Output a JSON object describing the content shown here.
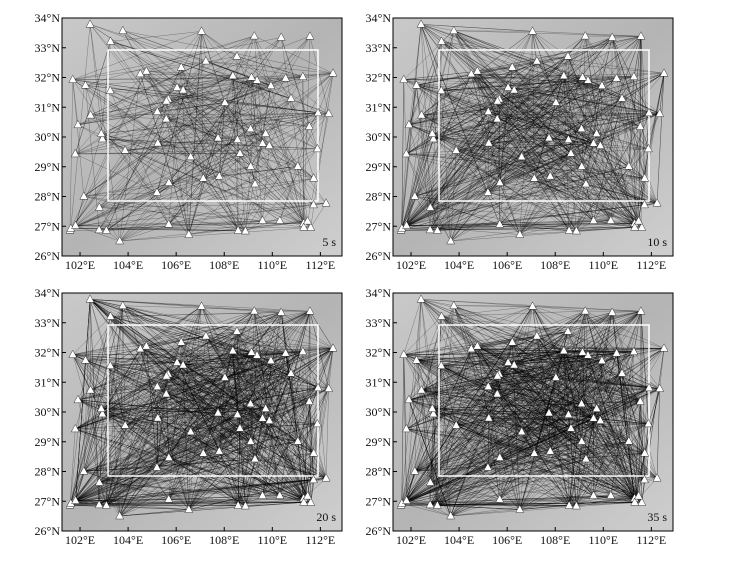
{
  "panels": [
    {
      "period_label": "5 s",
      "xlim": [
        101.25,
        112.9
      ],
      "ylim": [
        26,
        34
      ],
      "xticks": [
        {
          "value": 102,
          "label": "102°E"
        },
        {
          "value": 104,
          "label": "104°E"
        },
        {
          "value": 106,
          "label": "106°E"
        },
        {
          "value": 108,
          "label": "108°E"
        },
        {
          "value": 110,
          "label": "110°E"
        },
        {
          "value": 112,
          "label": "112°E"
        }
      ],
      "yticks": [
        {
          "value": 26,
          "label": "26°N"
        },
        {
          "value": 27,
          "label": "27°N"
        },
        {
          "value": 28,
          "label": "28°N"
        },
        {
          "value": 29,
          "label": "29°N"
        },
        {
          "value": 30,
          "label": "30°N"
        },
        {
          "value": 31,
          "label": "31°N"
        },
        {
          "value": 32,
          "label": "32°N"
        },
        {
          "value": 33,
          "label": "33°N"
        },
        {
          "value": 34,
          "label": "34°N"
        }
      ]
    },
    {
      "period_label": "10 s",
      "xlim": [
        101.25,
        112.9
      ],
      "ylim": [
        26,
        34
      ],
      "xticks": [
        {
          "value": 102,
          "label": "102°E"
        },
        {
          "value": 104,
          "label": "104°E"
        },
        {
          "value": 106,
          "label": "106°E"
        },
        {
          "value": 108,
          "label": "108°E"
        },
        {
          "value": 110,
          "label": "110°E"
        },
        {
          "value": 112,
          "label": "112°E"
        }
      ],
      "yticks": [
        {
          "value": 26,
          "label": "26°N"
        },
        {
          "value": 27,
          "label": "27°N"
        },
        {
          "value": 28,
          "label": "28°N"
        },
        {
          "value": 29,
          "label": "29°N"
        },
        {
          "value": 30,
          "label": "30°N"
        },
        {
          "value": 31,
          "label": "31°N"
        },
        {
          "value": 32,
          "label": "32°N"
        },
        {
          "value": 33,
          "label": "33°N"
        },
        {
          "value": 34,
          "label": "34°N"
        }
      ]
    },
    {
      "period_label": "20 s",
      "xlim": [
        101.25,
        112.9
      ],
      "ylim": [
        26,
        34
      ],
      "xticks": [
        {
          "value": 102,
          "label": "102°E"
        },
        {
          "value": 104,
          "label": "104°E"
        },
        {
          "value": 106,
          "label": "106°E"
        },
        {
          "value": 108,
          "label": "108°E"
        },
        {
          "value": 110,
          "label": "110°E"
        },
        {
          "value": 112,
          "label": "112°E"
        }
      ],
      "yticks": [
        {
          "value": 26,
          "label": "26°N"
        },
        {
          "value": 27,
          "label": "27°N"
        },
        {
          "value": 28,
          "label": "28°N"
        },
        {
          "value": 29,
          "label": "29°N"
        },
        {
          "value": 30,
          "label": "30°N"
        },
        {
          "value": 31,
          "label": "31°N"
        },
        {
          "value": 32,
          "label": "32°N"
        },
        {
          "value": 33,
          "label": "33°N"
        },
        {
          "value": 34,
          "label": "34°N"
        }
      ]
    },
    {
      "period_label": "35 s",
      "xlim": [
        101.25,
        112.9
      ],
      "ylim": [
        26,
        34
      ],
      "xticks": [
        {
          "value": 102,
          "label": "102°E"
        },
        {
          "value": 104,
          "label": "104°E"
        },
        {
          "value": 106,
          "label": "106°E"
        },
        {
          "value": 108,
          "label": "108°E"
        },
        {
          "value": 110,
          "label": "110°E"
        },
        {
          "value": 112,
          "label": "112°E"
        }
      ],
      "yticks": [
        {
          "value": 26,
          "label": "26°N"
        },
        {
          "value": 27,
          "label": "27°N"
        },
        {
          "value": 28,
          "label": "28°N"
        },
        {
          "value": 29,
          "label": "29°N"
        },
        {
          "value": 30,
          "label": "30°N"
        },
        {
          "value": 31,
          "label": "31°N"
        },
        {
          "value": 32,
          "label": "32°N"
        },
        {
          "value": 33,
          "label": "33°N"
        },
        {
          "value": 34,
          "label": "34°N"
        }
      ]
    }
  ]
}
